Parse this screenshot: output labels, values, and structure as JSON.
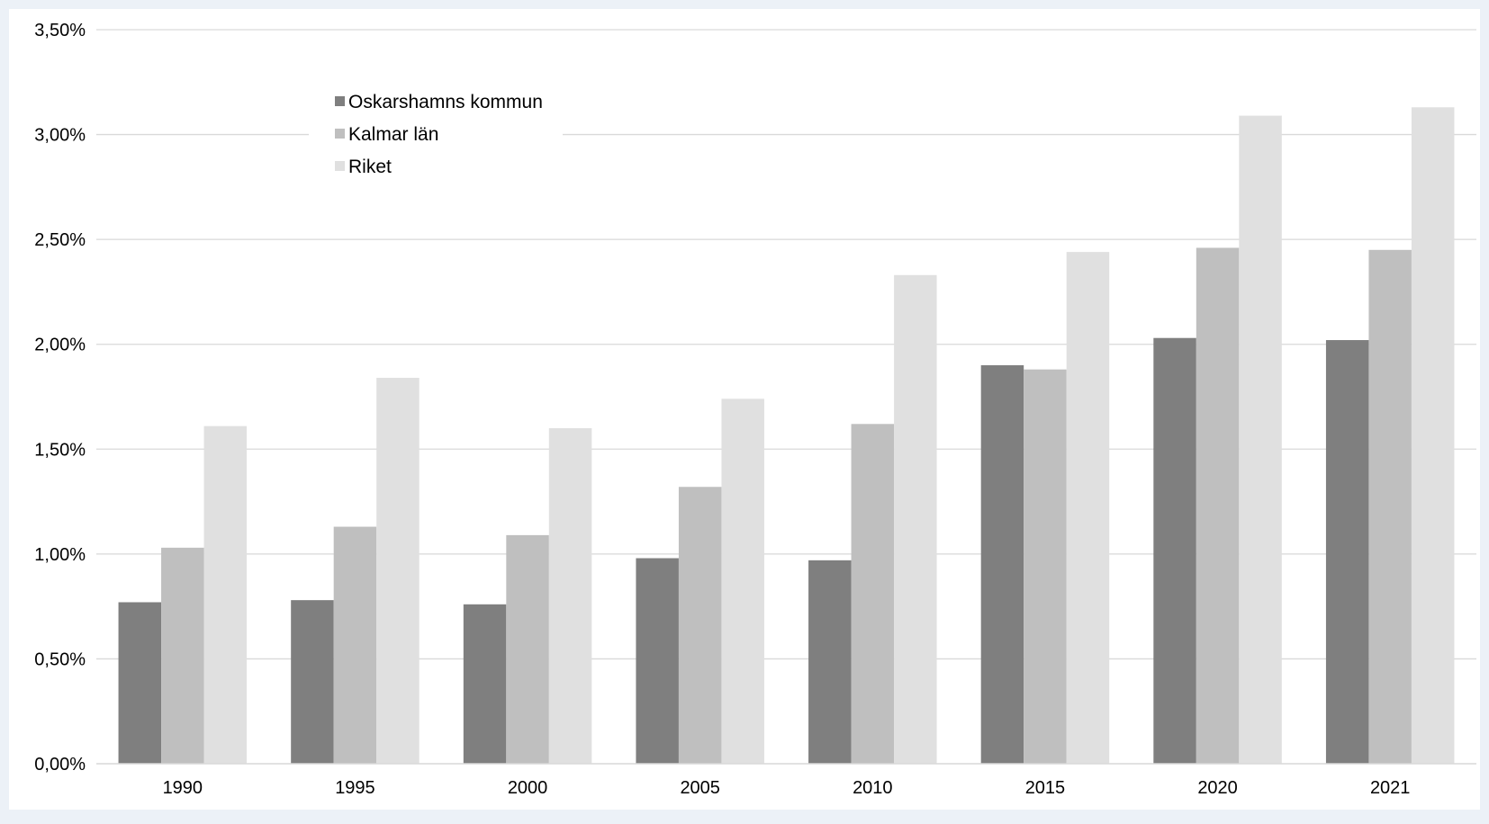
{
  "chart_data": {
    "type": "bar",
    "title": "",
    "xlabel": "",
    "ylabel": "",
    "categories": [
      "1990",
      "1995",
      "2000",
      "2005",
      "2010",
      "2015",
      "2020",
      "2021"
    ],
    "series": [
      {
        "name": "Oskarshamns kommun",
        "color": "#7f7f7f",
        "values": [
          0.77,
          0.78,
          0.76,
          0.98,
          0.97,
          1.9,
          2.03,
          2.02
        ]
      },
      {
        "name": "Kalmar län",
        "color": "#bfbfbf",
        "values": [
          1.03,
          1.13,
          1.09,
          1.32,
          1.62,
          1.88,
          2.46,
          2.45
        ]
      },
      {
        "name": "Riket",
        "color": "#e0e0e0",
        "values": [
          1.61,
          1.84,
          1.6,
          1.74,
          2.33,
          2.44,
          3.09,
          3.13
        ]
      }
    ],
    "ylim": [
      0,
      3.5
    ],
    "yticks": [
      0,
      0.5,
      1.0,
      1.5,
      2.0,
      2.5,
      3.0,
      3.5
    ],
    "ytick_labels": [
      "0,00%",
      "0,50%",
      "1,00%",
      "1,50%",
      "2,00%",
      "2,50%",
      "3,00%",
      "3,50%"
    ],
    "grid": true,
    "legend": "top-left inside plot",
    "background_color": "#ecf1f7",
    "plot_background_color": "#ffffff",
    "gridline_color": "#d9d9d9"
  }
}
